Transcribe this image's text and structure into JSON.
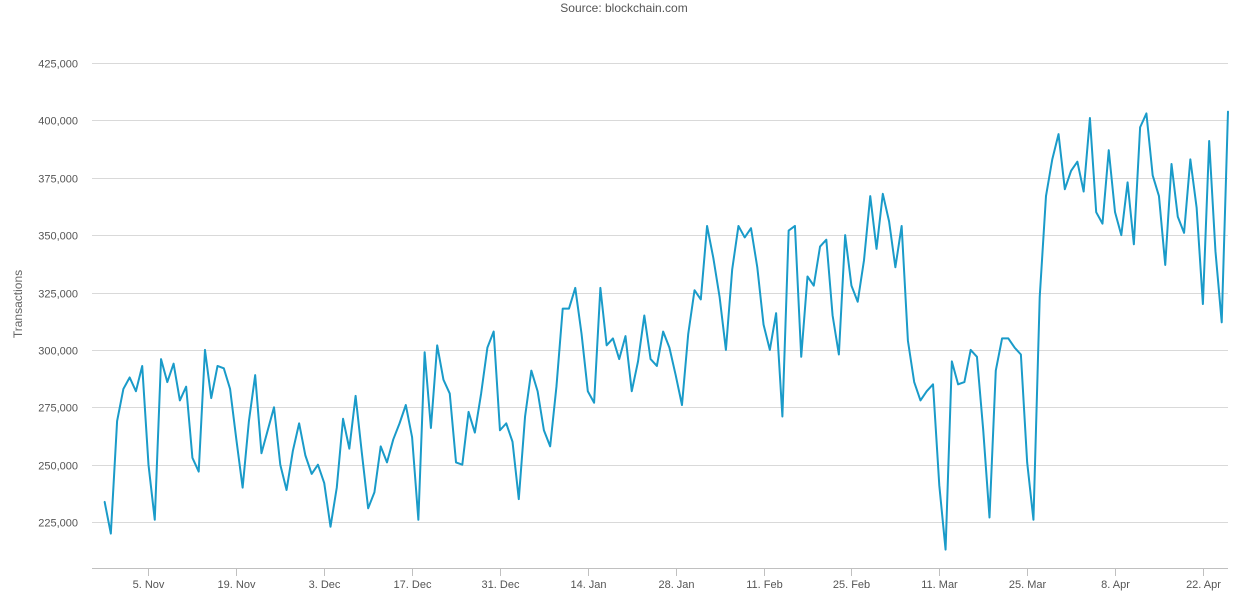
{
  "chart_data": {
    "type": "line",
    "title": "",
    "subtitle": "Source: blockchain.com",
    "xlabel": "",
    "ylabel": "Transactions",
    "ylim": [
      205000,
      435000
    ],
    "grid": "horizontal",
    "legend": "none",
    "colors": {
      "line": "#1a9bc9",
      "grid": "#d9d9d9",
      "axis": "#c0c0c0",
      "text": "#555555"
    },
    "y_ticks": [
      {
        "value": 225000,
        "label": "225,000"
      },
      {
        "value": 250000,
        "label": "250,000"
      },
      {
        "value": 275000,
        "label": "275,000"
      },
      {
        "value": 300000,
        "label": "300,000"
      },
      {
        "value": 325000,
        "label": "325,000"
      },
      {
        "value": 350000,
        "label": "350,000"
      },
      {
        "value": 375000,
        "label": "375,000"
      },
      {
        "value": 400000,
        "label": "400,000"
      },
      {
        "value": 425000,
        "label": "425,000"
      }
    ],
    "x_ticks": [
      {
        "date": "2018-11-05",
        "label": "5. Nov"
      },
      {
        "date": "2018-11-19",
        "label": "19. Nov"
      },
      {
        "date": "2018-12-03",
        "label": "3. Dec"
      },
      {
        "date": "2018-12-17",
        "label": "17. Dec"
      },
      {
        "date": "2018-12-31",
        "label": "31. Dec"
      },
      {
        "date": "2019-01-14",
        "label": "14. Jan"
      },
      {
        "date": "2019-01-28",
        "label": "28. Jan"
      },
      {
        "date": "2019-02-11",
        "label": "11. Feb"
      },
      {
        "date": "2019-02-25",
        "label": "25. Feb"
      },
      {
        "date": "2019-03-11",
        "label": "11. Mar"
      },
      {
        "date": "2019-03-25",
        "label": "25. Mar"
      },
      {
        "date": "2019-04-08",
        "label": "8. Apr"
      },
      {
        "date": "2019-04-22",
        "label": "22. Apr"
      }
    ],
    "x_range": [
      "2018-10-27",
      "2019-04-26"
    ],
    "series": [
      {
        "x_start": "2018-10-29",
        "x_step_days": 1,
        "values": [
          234000,
          220000,
          269000,
          283000,
          288000,
          282000,
          293000,
          250000,
          226000,
          296000,
          286000,
          294000,
          278000,
          284000,
          253000,
          247000,
          300000,
          279000,
          293000,
          292000,
          283000,
          261000,
          240000,
          269000,
          289000,
          255000,
          265000,
          275000,
          250000,
          239000,
          256000,
          268000,
          254000,
          246000,
          250000,
          242000,
          223000,
          240000,
          270000,
          257000,
          280000,
          255000,
          231000,
          238000,
          258000,
          251000,
          261000,
          268000,
          276000,
          262000,
          226000,
          299000,
          266000,
          302000,
          287000,
          281000,
          251000,
          250000,
          273000,
          264000,
          281000,
          301000,
          308000,
          265000,
          268000,
          260000,
          235000,
          271000,
          291000,
          282000,
          265000,
          258000,
          284000,
          318000,
          318000,
          327000,
          307000,
          282000,
          277000,
          327000,
          302000,
          305000,
          296000,
          306000,
          282000,
          295000,
          315000,
          296000,
          293000,
          308000,
          301000,
          289000,
          276000,
          307000,
          326000,
          322000,
          354000,
          340000,
          323000,
          300000,
          335000,
          354000,
          349000,
          353000,
          336000,
          311000,
          300000,
          316000,
          271000,
          352000,
          354000,
          297000,
          332000,
          328000,
          345000,
          348000,
          315000,
          298000,
          350000,
          328000,
          321000,
          339000,
          367000,
          344000,
          368000,
          356000,
          336000,
          354000,
          304000,
          286000,
          278000,
          282000,
          285000,
          241000,
          213000,
          295000,
          285000,
          286000,
          300000,
          297000,
          265000,
          227000,
          291000,
          305000,
          305000,
          301000,
          298000,
          251000,
          226000,
          323000,
          367000,
          383000,
          394000,
          370000,
          378000,
          382000,
          369000,
          401000,
          360000,
          355000,
          387000,
          360000,
          350000,
          373000,
          346000,
          397000,
          403000,
          376000,
          367000,
          337000,
          381000,
          358000,
          351000,
          383000,
          362000,
          320000,
          391000,
          343000,
          312000,
          404000
        ]
      }
    ]
  }
}
